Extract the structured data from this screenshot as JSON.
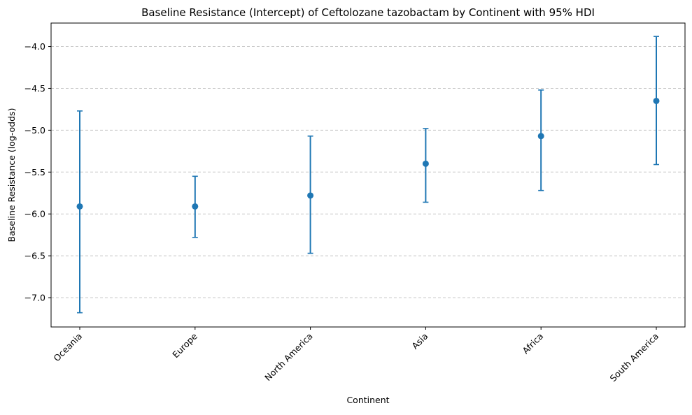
{
  "chart_data": {
    "type": "scatter",
    "title": "Baseline Resistance (Intercept) of Ceftolozane tazobactam by Continent with 95% HDI",
    "xlabel": "Continent",
    "ylabel": "Baseline Resistance (log-odds)",
    "categories": [
      "Oceania",
      "Europe",
      "North America",
      "Asia",
      "Africa",
      "South America"
    ],
    "values": [
      -5.91,
      -5.91,
      -5.78,
      -5.4,
      -5.07,
      -4.65
    ],
    "hdi_lower": [
      -7.18,
      -6.28,
      -6.47,
      -5.86,
      -5.72,
      -5.41
    ],
    "hdi_upper": [
      -4.77,
      -5.55,
      -5.07,
      -4.98,
      -4.52,
      -3.88
    ],
    "ylim": [
      -7.35,
      -3.72
    ],
    "yticks": [
      -7.0,
      -6.5,
      -6.0,
      -5.5,
      -5.0,
      -4.5,
      -4.0
    ],
    "ytick_labels": [
      "−7.0",
      "−6.5",
      "−6.0",
      "−5.5",
      "−5.0",
      "−4.5",
      "−4.0"
    ],
    "grid": "y-dashed",
    "color": "#1f77b4"
  }
}
